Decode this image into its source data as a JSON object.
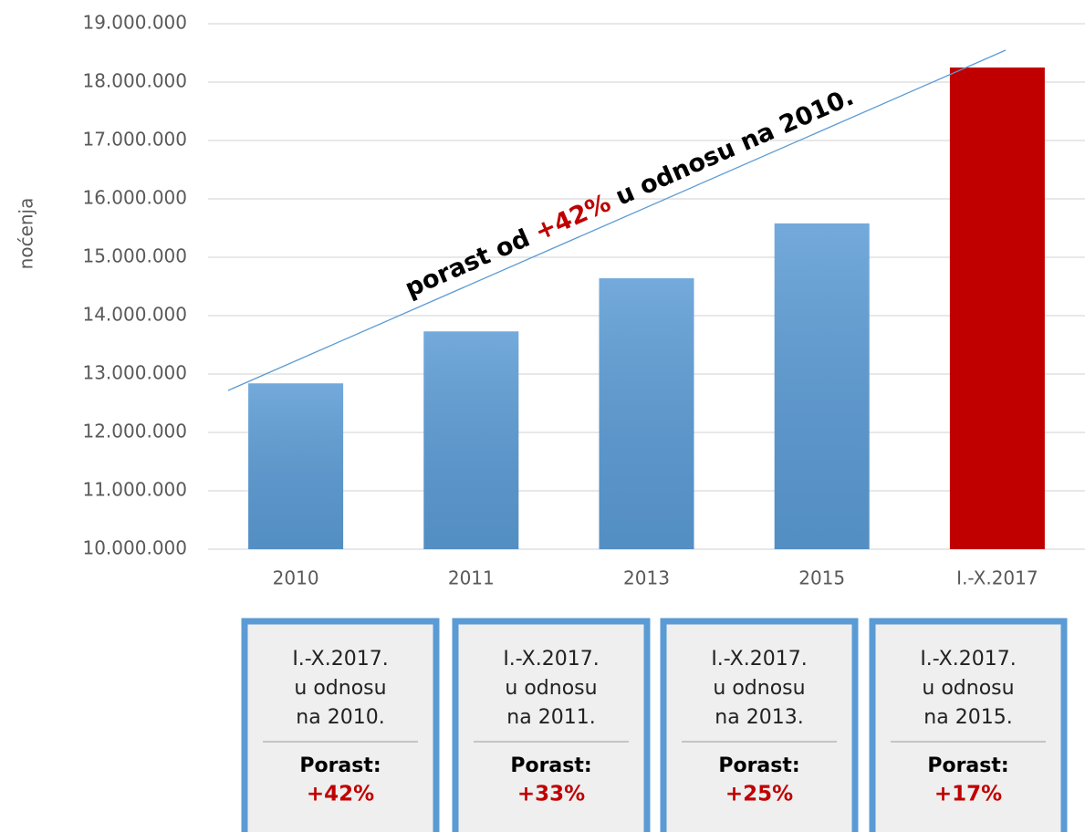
{
  "chart_data": {
    "type": "bar",
    "y_axis_label": "noćenja",
    "categories": [
      "2010",
      "2011",
      "2013",
      "2015",
      "I.-X.2017"
    ],
    "values": [
      12840000,
      13730000,
      14640000,
      15580000,
      18250000
    ],
    "colors": [
      "#5b9bd5",
      "#5b9bd5",
      "#5b9bd5",
      "#5b9bd5",
      "#c00000"
    ],
    "ylim": [
      10000000,
      19000000
    ],
    "yticks": [
      {
        "value": 10000000,
        "label": "10.000.000"
      },
      {
        "value": 11000000,
        "label": "11.000.000"
      },
      {
        "value": 12000000,
        "label": "12.000.000"
      },
      {
        "value": 13000000,
        "label": "13.000.000"
      },
      {
        "value": 14000000,
        "label": "14.000.000"
      },
      {
        "value": 15000000,
        "label": "15.000.000"
      },
      {
        "value": 16000000,
        "label": "16.000.000"
      },
      {
        "value": 17000000,
        "label": "17.000.000"
      },
      {
        "value": 18000000,
        "label": "18.000.000"
      },
      {
        "value": 19000000,
        "label": "19.000.000"
      }
    ],
    "grid": true,
    "annotation": {
      "before": "porast od ",
      "highlight": "+42%",
      "after": " u odnosu na 2010."
    }
  },
  "boxes": [
    {
      "lines": [
        "I.-X.2017.",
        "u odnosu",
        "na 2010."
      ],
      "label": "Porast:",
      "value": "+42%"
    },
    {
      "lines": [
        "I.-X.2017.",
        "u odnosu",
        "na 2011."
      ],
      "label": "Porast:",
      "value": "+33%"
    },
    {
      "lines": [
        "I.-X.2017.",
        "u odnosu",
        "na 2013."
      ],
      "label": "Porast:",
      "value": "+25%"
    },
    {
      "lines": [
        "I.-X.2017.",
        "u odnosu",
        "na 2015."
      ],
      "label": "Porast:",
      "value": "+17%"
    }
  ]
}
